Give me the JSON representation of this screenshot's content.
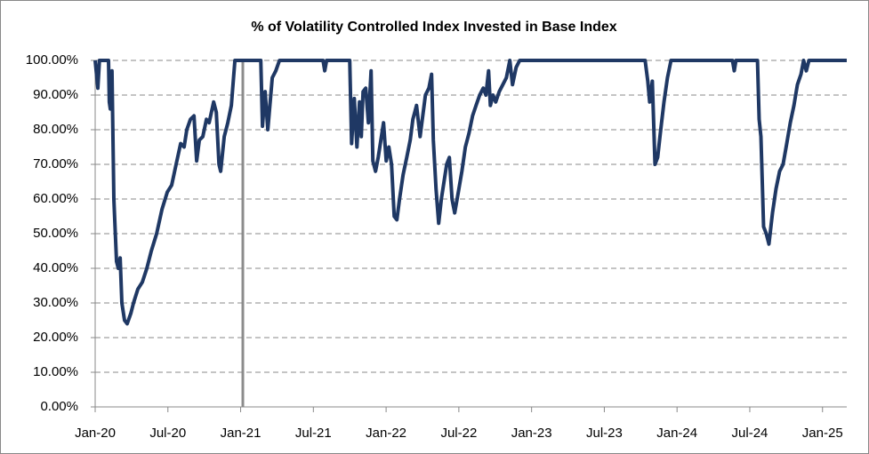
{
  "chart_data": {
    "type": "line",
    "title": "% of Volatility Controlled Index Invested in Base Index",
    "x": [
      0,
      0.22,
      0.35,
      1.1,
      1.17,
      1.25,
      1.39,
      1.54,
      1.76,
      1.91,
      2.06,
      2.2,
      2.42,
      2.64,
      2.94,
      3.16,
      3.52,
      3.89,
      4.26,
      4.63,
      5.07,
      5.51,
      5.95,
      6.31,
      6.68,
      7.05,
      7.34,
      7.56,
      7.86,
      8.15,
      8.37,
      8.59,
      8.88,
      9.18,
      9.4,
      9.77,
      9.99,
      10.21,
      10.35,
      10.65,
      10.94,
      11.23,
      11.53,
      13.66,
      13.8,
      14.02,
      14.24,
      14.46,
      14.61,
      14.9,
      15.2,
      18.8,
      18.94,
      19.09,
      21.0,
      21.15,
      21.37,
      21.59,
      21.81,
      21.95,
      22.1,
      22.32,
      22.54,
      22.76,
      22.91,
      23.13,
      23.35,
      23.57,
      23.79,
      24.01,
      24.23,
      24.45,
      24.67,
      24.89,
      25.11,
      25.4,
      25.7,
      25.99,
      26.21,
      26.51,
      26.8,
      27.02,
      27.24,
      27.53,
      27.75,
      27.9,
      28.12,
      28.34,
      28.56,
      28.78,
      29.0,
      29.22,
      29.44,
      29.66,
      29.96,
      30.25,
      30.54,
      30.84,
      31.13,
      31.42,
      31.72,
      32.01,
      32.23,
      32.45,
      32.6,
      32.82,
      33.04,
      33.33,
      33.63,
      33.92,
      34.21,
      34.43,
      34.73,
      35.02,
      45.37,
      45.59,
      45.74,
      45.96,
      46.18,
      46.4,
      46.62,
      46.92,
      47.21,
      47.5,
      52.57,
      52.72,
      52.86,
      54.63,
      54.77,
      54.92,
      55.14,
      55.36,
      55.58,
      55.87,
      56.17,
      56.46,
      56.75,
      57.05,
      57.34,
      57.64,
      57.93,
      58.22,
      58.44,
      58.66,
      58.88,
      62
    ],
    "series": [
      {
        "color": "#1f3864",
        "values": [
          100,
          92,
          100,
          100,
          88,
          86,
          97,
          60,
          42,
          40,
          43,
          30,
          25,
          24,
          27,
          30,
          34,
          36,
          40,
          45,
          50,
          57,
          62,
          64,
          70,
          76,
          75,
          80,
          83,
          84,
          71,
          77,
          78,
          83,
          82,
          88,
          85,
          70,
          68,
          78,
          82,
          87,
          100,
          100,
          81,
          91,
          80,
          89,
          95,
          97,
          100,
          100,
          97,
          100,
          100,
          76,
          89,
          75,
          88,
          78,
          91,
          92,
          82,
          97,
          71,
          68,
          72,
          77,
          82,
          71,
          75,
          70,
          55,
          54,
          60,
          67,
          72,
          77,
          83,
          87,
          78,
          84,
          90,
          92,
          96,
          77,
          63,
          53,
          60,
          65,
          70,
          72,
          60,
          56,
          62,
          68,
          75,
          79,
          84,
          87,
          90,
          92,
          90,
          97,
          87,
          90,
          88,
          91,
          93,
          95,
          100,
          93,
          98,
          100,
          100,
          94,
          88,
          94,
          70,
          72,
          79,
          88,
          95,
          100,
          100,
          97,
          100,
          100,
          83,
          78,
          52,
          50,
          47,
          56,
          63,
          68,
          70,
          76,
          82,
          87,
          93,
          96,
          100,
          97,
          100,
          100
        ]
      }
    ],
    "xlim": [
      0,
      62
    ],
    "xticks": [
      {
        "value": 0,
        "label": "Jan-20"
      },
      {
        "value": 6,
        "label": "Jul-20"
      },
      {
        "value": 12,
        "label": "Jan-21"
      },
      {
        "value": 18,
        "label": "Jul-21"
      },
      {
        "value": 24,
        "label": "Jan-22"
      },
      {
        "value": 30,
        "label": "Jul-22"
      },
      {
        "value": 36,
        "label": "Jan-23"
      },
      {
        "value": 42,
        "label": "Jul-23"
      },
      {
        "value": 48,
        "label": "Jan-24"
      },
      {
        "value": 54,
        "label": "Jul-24"
      },
      {
        "value": 60,
        "label": "Jan-25"
      }
    ],
    "ylim": [
      0,
      100
    ],
    "yticks": [
      {
        "value": 0,
        "label": "0.00%"
      },
      {
        "value": 10,
        "label": "10.00%"
      },
      {
        "value": 20,
        "label": "20.00%"
      },
      {
        "value": 30,
        "label": "30.00%"
      },
      {
        "value": 40,
        "label": "40.00%"
      },
      {
        "value": 50,
        "label": "50.00%"
      },
      {
        "value": 60,
        "label": "60.00%"
      },
      {
        "value": 70,
        "label": "70.00%"
      },
      {
        "value": 80,
        "label": "80.00%"
      },
      {
        "value": 90,
        "label": "90.00%"
      },
      {
        "value": 100,
        "label": "100.00%"
      }
    ],
    "grid": true
  }
}
